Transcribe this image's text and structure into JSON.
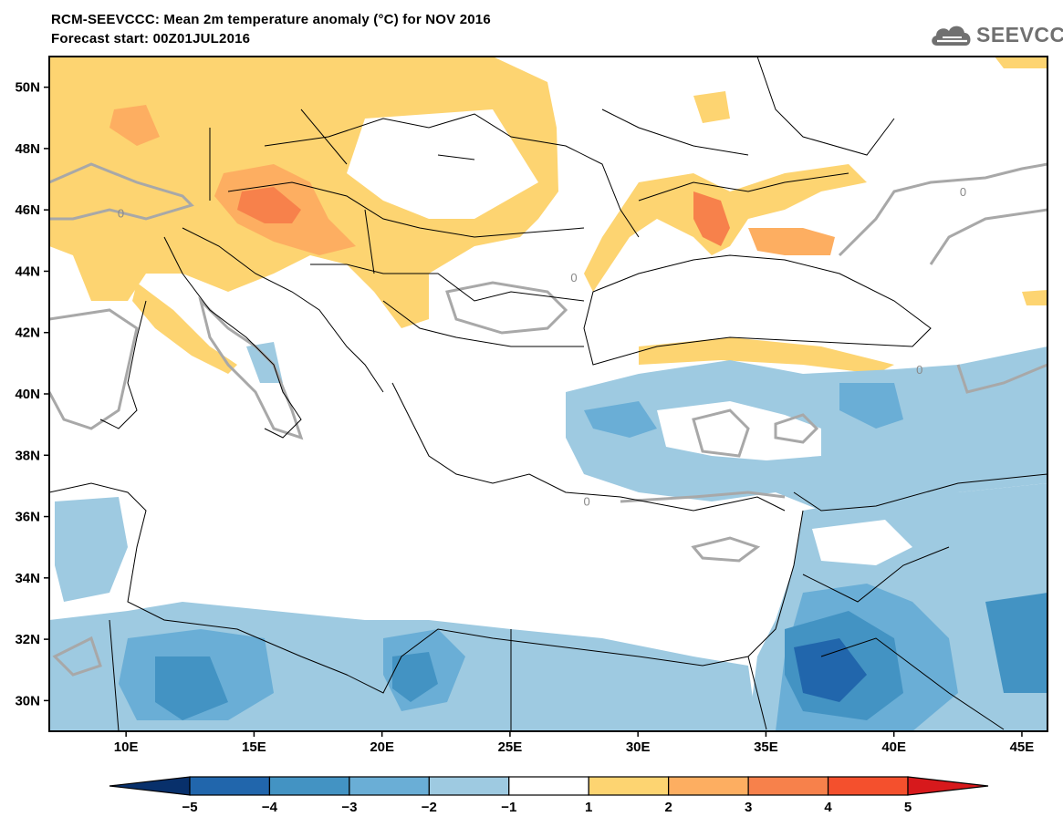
{
  "title_line1": "RCM-SEEVCCC: Mean 2m temperature anomaly (°C) for NOV 2016",
  "title_line2": "Forecast start: 00Z01JUL2016",
  "logo_text": "SEEVCCC",
  "map": {
    "lon_range": [
      7,
      46
    ],
    "lat_range": [
      29,
      51
    ],
    "lat_ticks": [
      "50N",
      "48N",
      "46N",
      "44N",
      "42N",
      "40N",
      "38N",
      "36N",
      "34N",
      "32N",
      "30N"
    ],
    "lon_ticks": [
      "10E",
      "15E",
      "20E",
      "25E",
      "30E",
      "35E",
      "40E",
      "45E"
    ],
    "contour_labels": [
      "0",
      "0",
      "0",
      "0",
      "0"
    ]
  },
  "colorbar": {
    "labels": [
      "-5",
      "-4",
      "-3",
      "-2",
      "-1",
      "1",
      "2",
      "3",
      "4",
      "5"
    ],
    "colors": {
      "lt_minus5": "#08306b",
      "minus5_minus4": "#2166ac",
      "minus4_minus3": "#4393c3",
      "minus3_minus2": "#6aaed6",
      "minus2_minus1": "#9ecae1",
      "minus1_1": "#ffffff",
      "1_2": "#fdd471",
      "2_3": "#fdae61",
      "3_4": "#f7814b",
      "4_5": "#f4502d",
      "gt_5": "#d7191c"
    }
  }
}
